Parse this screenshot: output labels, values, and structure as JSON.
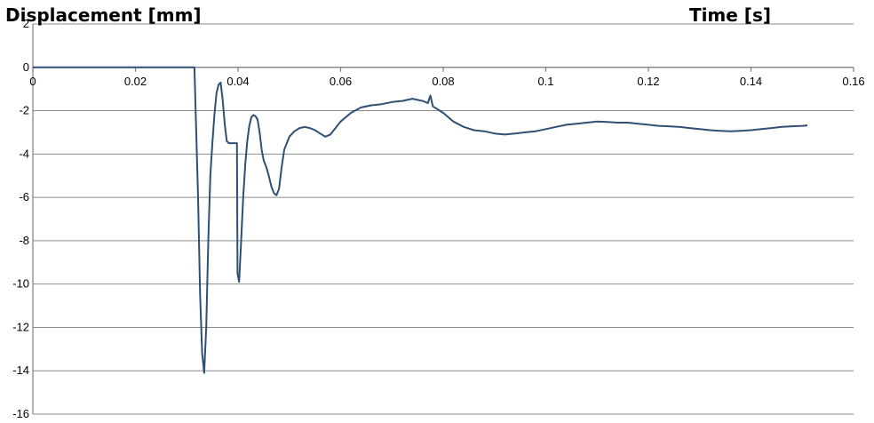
{
  "chart_data": {
    "type": "line",
    "ylabel": "Displacement [mm]",
    "xlabel": "Time [s]",
    "xlim": [
      0,
      0.16
    ],
    "ylim": [
      -16,
      2
    ],
    "xticks": [
      "0",
      "0.02",
      "0.04",
      "0.06",
      "0.08",
      "0.1",
      "0.12",
      "0.14",
      "0.16"
    ],
    "yticks": [
      "2",
      "0",
      "-2",
      "-4",
      "-6",
      "-8",
      "-10",
      "-12",
      "-14",
      "-16"
    ],
    "grid": true,
    "series_color": "#2f4f73",
    "series": [
      {
        "x": [
          0,
          0.005,
          0.01,
          0.015,
          0.02,
          0.025,
          0.0315,
          0.0318,
          0.0322,
          0.0326,
          0.033,
          0.0334,
          0.0338,
          0.0342,
          0.0346,
          0.035,
          0.0354,
          0.0358,
          0.0362,
          0.0366,
          0.037,
          0.0374,
          0.0378,
          0.0382,
          0.0386,
          0.039,
          0.0394,
          0.0398,
          0.0399,
          0.0402,
          0.0406,
          0.041,
          0.0414,
          0.0418,
          0.0422,
          0.0426,
          0.043,
          0.0434,
          0.0438,
          0.0442,
          0.0446,
          0.045,
          0.0455,
          0.046,
          0.0465,
          0.047,
          0.0475,
          0.048,
          0.0485,
          0.049,
          0.05,
          0.051,
          0.052,
          0.053,
          0.054,
          0.055,
          0.056,
          0.057,
          0.058,
          0.059,
          0.06,
          0.062,
          0.064,
          0.066,
          0.068,
          0.07,
          0.072,
          0.074,
          0.076,
          0.077,
          0.0775,
          0.078,
          0.08,
          0.082,
          0.084,
          0.086,
          0.088,
          0.09,
          0.092,
          0.094,
          0.096,
          0.098,
          0.1,
          0.102,
          0.104,
          0.106,
          0.108,
          0.11,
          0.112,
          0.114,
          0.116,
          0.118,
          0.12,
          0.122,
          0.124,
          0.126,
          0.128,
          0.13,
          0.132,
          0.134,
          0.136,
          0.138,
          0.14,
          0.142,
          0.144,
          0.146,
          0.148,
          0.15,
          0.151
        ],
        "y": [
          0,
          0,
          0,
          0,
          0,
          0,
          0,
          -2.5,
          -6,
          -10.5,
          -13.2,
          -14.1,
          -12,
          -8,
          -5,
          -3.5,
          -2.2,
          -1.2,
          -0.8,
          -0.7,
          -1.5,
          -2.6,
          -3.4,
          -3.5,
          -3.5,
          -3.5,
          -3.5,
          -3.5,
          -9.5,
          -9.9,
          -8,
          -6,
          -4.5,
          -3.4,
          -2.7,
          -2.3,
          -2.2,
          -2.25,
          -2.4,
          -3,
          -3.8,
          -4.3,
          -4.6,
          -5,
          -5.5,
          -5.8,
          -5.9,
          -5.6,
          -4.6,
          -3.8,
          -3.2,
          -2.95,
          -2.8,
          -2.75,
          -2.8,
          -2.9,
          -3.05,
          -3.2,
          -3.1,
          -2.8,
          -2.5,
          -2.1,
          -1.85,
          -1.75,
          -1.7,
          -1.6,
          -1.55,
          -1.45,
          -1.55,
          -1.65,
          -1.3,
          -1.8,
          -2.1,
          -2.5,
          -2.75,
          -2.9,
          -2.95,
          -3.05,
          -3.1,
          -3.05,
          -3.0,
          -2.95,
          -2.85,
          -2.75,
          -2.65,
          -2.6,
          -2.55,
          -2.5,
          -2.52,
          -2.55,
          -2.55,
          -2.6,
          -2.65,
          -2.7,
          -2.72,
          -2.75,
          -2.8,
          -2.85,
          -2.9,
          -2.93,
          -2.95,
          -2.93,
          -2.9,
          -2.85,
          -2.8,
          -2.75,
          -2.72,
          -2.7,
          -2.68
        ]
      }
    ]
  }
}
